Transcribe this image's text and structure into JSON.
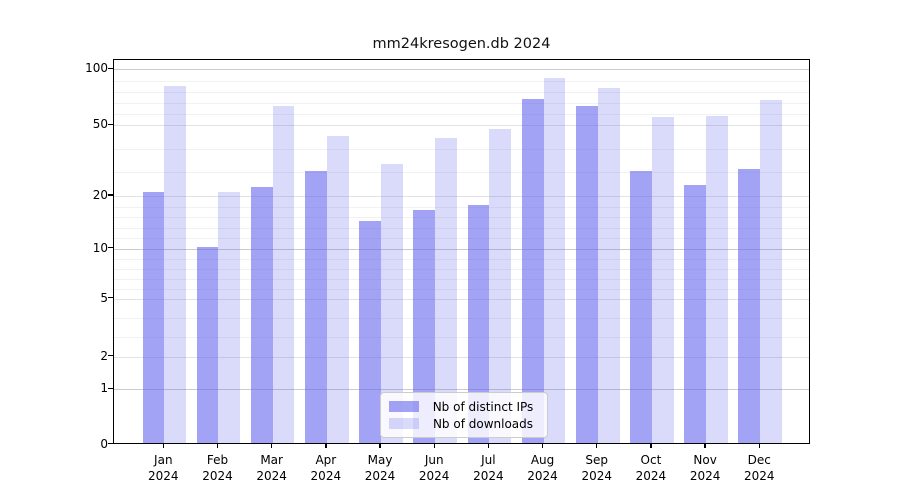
{
  "title": "mm24kresogen.db 2024",
  "chart_data": {
    "type": "bar",
    "categories": [
      "Jan",
      "Feb",
      "Mar",
      "Apr",
      "May",
      "Jun",
      "Jul",
      "Aug",
      "Sep",
      "Oct",
      "Nov",
      "Dec"
    ],
    "year": "2024",
    "series": [
      {
        "name": "Nb of distinct IPs",
        "color": "rgba(102,102,238,0.60)",
        "values": [
          21,
          10,
          23,
          30,
          15,
          17,
          18,
          72,
          66,
          30,
          24,
          31
        ]
      },
      {
        "name": "Nb of downloads",
        "color": "rgba(102,102,238,0.24)",
        "values": [
          84,
          21,
          66,
          45,
          33,
          44,
          48,
          91,
          82,
          56,
          57,
          71
        ]
      }
    ],
    "yticks": [
      0,
      1,
      2,
      5,
      10,
      20,
      50,
      100
    ],
    "minor_gridline_values": [
      3,
      4,
      6,
      7,
      8,
      9,
      12,
      14,
      16,
      18,
      30,
      40,
      60,
      70,
      80,
      90
    ],
    "ylim": [
      0,
      100
    ],
    "scale": "log-like (0,1,2,5,10,20,50,100)",
    "grid": true,
    "legend_position": "bottom-center",
    "xlabel": "",
    "ylabel": ""
  }
}
